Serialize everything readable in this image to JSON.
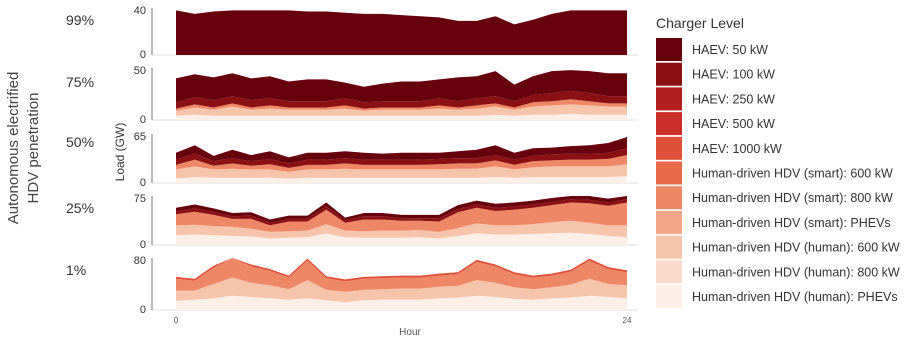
{
  "figure": {
    "ylabel": "Load (GW)",
    "xlabel": "Hour",
    "x_ticks": [
      "0",
      "24"
    ],
    "row_title": "Autonomous electrified HDV penetration"
  },
  "legend": {
    "title": "Charger Level",
    "entries": [
      {
        "label": "HAEV: 50 kW",
        "color": "#67000d"
      },
      {
        "label": "HAEV: 100 kW",
        "color": "#8a1014"
      },
      {
        "label": "HAEV: 250 kW",
        "color": "#b21d1d"
      },
      {
        "label": "HAEV: 500 kW",
        "color": "#cb2f29"
      },
      {
        "label": "HAEV: 1000 kW",
        "color": "#e04f39"
      },
      {
        "label": "Human-driven HDV (smart): 600 kW",
        "color": "#e8694a"
      },
      {
        "label": "Human-driven HDV (smart): 800 kW",
        "color": "#ee8766"
      },
      {
        "label": "Human-driven HDV (smart): PHEVs",
        "color": "#f3a687"
      },
      {
        "label": "Human-driven HDV (human): 600 kW",
        "color": "#f6c3ab"
      },
      {
        "label": "Human-driven HDV (human): 800 kW",
        "color": "#f9dbcb"
      },
      {
        "label": "Human-driven HDV (human): PHEVs",
        "color": "#fcefe7"
      }
    ]
  },
  "chart_data": [
    {
      "type": "area",
      "panel_label": "99%",
      "ylim": [
        0,
        40
      ],
      "y_ticks": [
        "40",
        "0"
      ],
      "x": [
        0,
        1,
        2,
        3,
        4,
        5,
        6,
        7,
        8,
        9,
        10,
        11,
        12,
        13,
        14,
        15,
        16,
        17,
        18,
        19,
        20,
        21,
        22,
        23,
        24
      ],
      "series": [
        {
          "color": "#67000d",
          "values": [
            38,
            35,
            37,
            38,
            38,
            38,
            38,
            37,
            37,
            36,
            35,
            35,
            34,
            33,
            32,
            29,
            29,
            33,
            26,
            30,
            35,
            38,
            38,
            38,
            38
          ]
        }
      ]
    },
    {
      "type": "area",
      "panel_label": "75%",
      "ylim": [
        0,
        50
      ],
      "y_ticks": [
        "50",
        "0"
      ],
      "x": [
        0,
        1,
        2,
        3,
        4,
        5,
        6,
        7,
        8,
        9,
        10,
        11,
        12,
        13,
        14,
        15,
        16,
        17,
        18,
        19,
        20,
        21,
        22,
        23,
        24
      ],
      "series": [
        {
          "color": "#fcefe7",
          "values": [
            4,
            5,
            4,
            4,
            4,
            4,
            4,
            4,
            4,
            4,
            4,
            4,
            4,
            4,
            4,
            4,
            4,
            5,
            4,
            5,
            5,
            6,
            5,
            5,
            5
          ]
        },
        {
          "color": "#f6c3ab",
          "values": [
            5,
            7,
            6,
            9,
            6,
            7,
            6,
            6,
            6,
            7,
            5,
            6,
            6,
            6,
            7,
            6,
            7,
            8,
            6,
            8,
            9,
            9,
            9,
            8,
            8
          ]
        },
        {
          "color": "#ee8766",
          "values": [
            2,
            3,
            2,
            3,
            2,
            3,
            2,
            2,
            2,
            3,
            2,
            2,
            2,
            2,
            3,
            2,
            3,
            3,
            2,
            4,
            4,
            5,
            4,
            3,
            3
          ]
        },
        {
          "color": "#8a1014",
          "values": [
            6,
            7,
            7,
            7,
            7,
            7,
            6,
            6,
            6,
            7,
            6,
            6,
            6,
            6,
            7,
            6,
            7,
            7,
            6,
            7,
            8,
            8,
            8,
            7,
            7
          ]
        },
        {
          "color": "#67000d",
          "values": [
            23,
            22,
            22,
            22,
            21,
            21,
            19,
            21,
            21,
            15,
            15,
            17,
            19,
            19,
            18,
            23,
            21,
            24,
            16,
            18,
            21,
            20,
            21,
            22,
            22
          ]
        }
      ]
    },
    {
      "type": "area",
      "panel_label": "50%",
      "ylim": [
        0,
        65
      ],
      "y_ticks": [
        "65",
        "0"
      ],
      "x": [
        0,
        1,
        2,
        3,
        4,
        5,
        6,
        7,
        8,
        9,
        10,
        11,
        12,
        13,
        14,
        15,
        16,
        17,
        18,
        19,
        20,
        21,
        22,
        23,
        24
      ],
      "series": [
        {
          "color": "#fcefe7",
          "values": [
            6,
            8,
            7,
            7,
            7,
            7,
            6,
            7,
            7,
            7,
            7,
            7,
            7,
            7,
            7,
            7,
            7,
            8,
            7,
            8,
            8,
            8,
            8,
            8,
            9
          ]
        },
        {
          "color": "#f6c3ab",
          "values": [
            12,
            14,
            11,
            12,
            11,
            11,
            9,
            11,
            11,
            12,
            11,
            11,
            11,
            11,
            11,
            12,
            12,
            14,
            11,
            13,
            14,
            14,
            14,
            14,
            16
          ]
        },
        {
          "color": "#ee8766",
          "values": [
            6,
            9,
            5,
            7,
            5,
            7,
            5,
            6,
            6,
            7,
            6,
            6,
            6,
            6,
            7,
            7,
            7,
            8,
            6,
            8,
            8,
            9,
            9,
            10,
            12
          ]
        },
        {
          "color": "#8a1014",
          "values": [
            7,
            8,
            6,
            7,
            6,
            7,
            6,
            7,
            7,
            7,
            7,
            7,
            7,
            7,
            7,
            7,
            7,
            7,
            7,
            7,
            8,
            8,
            8,
            8,
            9
          ]
        },
        {
          "color": "#67000d",
          "values": [
            9,
            11,
            7,
            11,
            8,
            10,
            8,
            9,
            9,
            9,
            9,
            8,
            9,
            9,
            8,
            9,
            11,
            13,
            9,
            10,
            9,
            10,
            11,
            13,
            15
          ]
        }
      ]
    },
    {
      "type": "area",
      "panel_label": "25%",
      "ylim": [
        0,
        75
      ],
      "y_ticks": [
        "75",
        "0"
      ],
      "x": [
        0,
        1,
        2,
        3,
        4,
        5,
        6,
        7,
        8,
        9,
        10,
        11,
        12,
        13,
        14,
        15,
        16,
        17,
        18,
        19,
        20,
        21,
        22,
        23,
        24
      ],
      "series": [
        {
          "color": "#fcefe7",
          "values": [
            15,
            16,
            15,
            14,
            13,
            10,
            11,
            12,
            18,
            12,
            11,
            11,
            11,
            12,
            10,
            14,
            18,
            16,
            16,
            17,
            18,
            19,
            17,
            14,
            12
          ]
        },
        {
          "color": "#f6c3ab",
          "values": [
            15,
            15,
            14,
            14,
            12,
            10,
            10,
            10,
            14,
            10,
            10,
            11,
            11,
            11,
            10,
            12,
            15,
            14,
            14,
            15,
            17,
            18,
            17,
            16,
            18
          ]
        },
        {
          "color": "#ee8766",
          "values": [
            17,
            20,
            17,
            12,
            15,
            10,
            15,
            14,
            22,
            12,
            18,
            17,
            15,
            14,
            16,
            24,
            24,
            22,
            24,
            25,
            26,
            28,
            30,
            30,
            35
          ]
        },
        {
          "color": "#8a1014",
          "values": [
            5,
            5,
            5,
            4,
            5,
            4,
            4,
            4,
            5,
            4,
            5,
            5,
            4,
            4,
            5,
            5,
            5,
            5,
            5,
            5,
            5,
            5,
            5,
            5,
            5
          ]
        },
        {
          "color": "#67000d",
          "values": [
            5,
            6,
            5,
            5,
            5,
            5,
            5,
            5,
            6,
            4,
            5,
            5,
            5,
            5,
            5,
            6,
            6,
            6,
            6,
            6,
            6,
            6,
            6,
            6,
            6
          ]
        }
      ]
    },
    {
      "type": "area",
      "panel_label": "1%",
      "ylim": [
        0,
        80
      ],
      "y_ticks": [
        "80",
        "0"
      ],
      "x": [
        0,
        1,
        2,
        3,
        4,
        5,
        6,
        7,
        8,
        9,
        10,
        11,
        12,
        13,
        14,
        15,
        16,
        17,
        18,
        19,
        20,
        21,
        22,
        23,
        24
      ],
      "series": [
        {
          "color": "#fcefe7",
          "values": [
            14,
            16,
            18,
            22,
            20,
            18,
            16,
            18,
            15,
            12,
            15,
            16,
            16,
            16,
            18,
            19,
            22,
            20,
            17,
            16,
            18,
            19,
            22,
            20,
            18
          ]
        },
        {
          "color": "#f6c3ab",
          "values": [
            16,
            14,
            22,
            28,
            22,
            20,
            16,
            28,
            16,
            16,
            16,
            16,
            17,
            17,
            18,
            18,
            24,
            22,
            18,
            16,
            17,
            20,
            26,
            20,
            20
          ]
        },
        {
          "color": "#ee8766",
          "values": [
            18,
            15,
            25,
            33,
            25,
            22,
            18,
            30,
            18,
            16,
            17,
            17,
            17,
            17,
            17,
            18,
            28,
            25,
            20,
            18,
            18,
            20,
            28,
            23,
            20
          ]
        },
        {
          "color": "#e04f39",
          "values": [
            3,
            3,
            3,
            3,
            3,
            3,
            3,
            3,
            3,
            3,
            3,
            3,
            3,
            3,
            3,
            3,
            3,
            3,
            3,
            3,
            3,
            3,
            3,
            3,
            3
          ]
        }
      ]
    }
  ]
}
